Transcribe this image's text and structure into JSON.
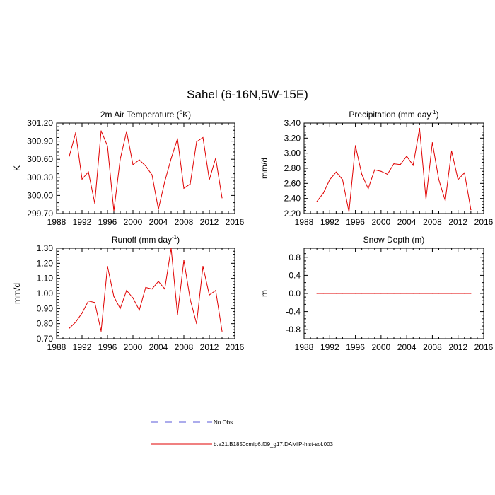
{
  "figure": {
    "title": "Sahel (6-16N,5W-15E)",
    "legend": [
      {
        "label": "No Obs",
        "color": "#5a5ad8",
        "style": "dashed"
      },
      {
        "label": "b.e21.B1850cmip6.f09_g17.DAMIP-hist-sol.003",
        "color": "#e00000",
        "style": "solid"
      }
    ]
  },
  "chart_data": [
    {
      "type": "line",
      "title": "2m Air Temperature (",
      "title_sup": "o",
      "title_end": "K)",
      "ylabel": "K",
      "xlim": [
        1988,
        2016
      ],
      "ylim": [
        299.7,
        301.2
      ],
      "xticks": [
        1988,
        1992,
        1996,
        2000,
        2004,
        2008,
        2012,
        2016
      ],
      "yticks": [
        "299.70",
        "300.00",
        "300.30",
        "300.60",
        "300.90",
        "301.20"
      ],
      "series": [
        {
          "color": "#e00000",
          "x": [
            1990,
            1991,
            1992,
            1993,
            1994,
            1995,
            1996,
            1997,
            1998,
            1999,
            2000,
            2001,
            2002,
            2003,
            2004,
            2005,
            2006,
            2007,
            2008,
            2009,
            2010,
            2011,
            2012,
            2013,
            2014
          ],
          "y": [
            300.65,
            301.04,
            300.27,
            300.39,
            299.87,
            301.07,
            300.82,
            299.74,
            300.6,
            301.06,
            300.51,
            300.59,
            300.49,
            300.34,
            299.77,
            300.23,
            300.61,
            300.94,
            300.12,
            300.19,
            300.89,
            300.96,
            300.26,
            300.62,
            299.96
          ]
        }
      ]
    },
    {
      "type": "line",
      "title": "Precipitation (mm day",
      "title_sup": "-1",
      "title_end": ")",
      "ylabel": "mm/d",
      "xlim": [
        1988,
        2016
      ],
      "ylim": [
        2.2,
        3.4
      ],
      "xticks": [
        1988,
        1992,
        1996,
        2000,
        2004,
        2008,
        2012,
        2016
      ],
      "yticks": [
        "2.20",
        "2.40",
        "2.60",
        "2.80",
        "3.00",
        "3.20",
        "3.40"
      ],
      "series": [
        {
          "color": "#e00000",
          "x": [
            1990,
            1991,
            1992,
            1993,
            1994,
            1995,
            1996,
            1997,
            1998,
            1999,
            2000,
            2001,
            2002,
            2003,
            2004,
            2005,
            2006,
            2007,
            2008,
            2009,
            2010,
            2011,
            2012,
            2013,
            2014
          ],
          "y": [
            2.36,
            2.47,
            2.65,
            2.75,
            2.65,
            2.22,
            3.1,
            2.72,
            2.53,
            2.78,
            2.76,
            2.72,
            2.86,
            2.85,
            2.96,
            2.84,
            3.33,
            2.39,
            3.14,
            2.65,
            2.37,
            3.03,
            2.65,
            2.74,
            2.25
          ]
        }
      ]
    },
    {
      "type": "line",
      "title": "Runoff (mm day",
      "title_sup": "-1",
      "title_end": ")",
      "ylabel": "mm/d",
      "xlim": [
        1988,
        2016
      ],
      "ylim": [
        0.7,
        1.3
      ],
      "xticks": [
        1988,
        1992,
        1996,
        2000,
        2004,
        2008,
        2012,
        2016
      ],
      "yticks": [
        "0.70",
        "0.80",
        "0.90",
        "1.00",
        "1.10",
        "1.20",
        "1.30"
      ],
      "series": [
        {
          "color": "#e00000",
          "x": [
            1990,
            1991,
            1992,
            1993,
            1994,
            1995,
            1996,
            1997,
            1998,
            1999,
            2000,
            2001,
            2002,
            2003,
            2004,
            2005,
            2006,
            2007,
            2008,
            2009,
            2010,
            2011,
            2012,
            2013,
            2014
          ],
          "y": [
            0.77,
            0.81,
            0.87,
            0.95,
            0.94,
            0.75,
            1.18,
            0.98,
            0.9,
            1.02,
            0.97,
            0.89,
            1.04,
            1.03,
            1.08,
            1.03,
            1.3,
            0.86,
            1.22,
            0.96,
            0.8,
            1.18,
            0.99,
            1.02,
            0.75
          ]
        }
      ]
    },
    {
      "type": "line",
      "title": "Snow Depth (m)",
      "title_sup": "",
      "title_end": "",
      "ylabel": "m",
      "xlim": [
        1988,
        2016
      ],
      "ylim": [
        -1.0,
        1.0
      ],
      "xticks": [
        1988,
        1992,
        1996,
        2000,
        2004,
        2008,
        2012,
        2016
      ],
      "yticks": [
        "-0.8",
        "-0.4",
        "0.0",
        "0.4",
        "0.8"
      ],
      "series": [
        {
          "color": "#e00000",
          "x": [
            1990,
            1991,
            1992,
            1993,
            1994,
            1995,
            1996,
            1997,
            1998,
            1999,
            2000,
            2001,
            2002,
            2003,
            2004,
            2005,
            2006,
            2007,
            2008,
            2009,
            2010,
            2011,
            2012,
            2013,
            2014
          ],
          "y": [
            0,
            0,
            0,
            0,
            0,
            0,
            0,
            0,
            0,
            0,
            0,
            0,
            0,
            0,
            0,
            0,
            0,
            0,
            0,
            0,
            0,
            0,
            0,
            0,
            0
          ]
        }
      ]
    }
  ]
}
